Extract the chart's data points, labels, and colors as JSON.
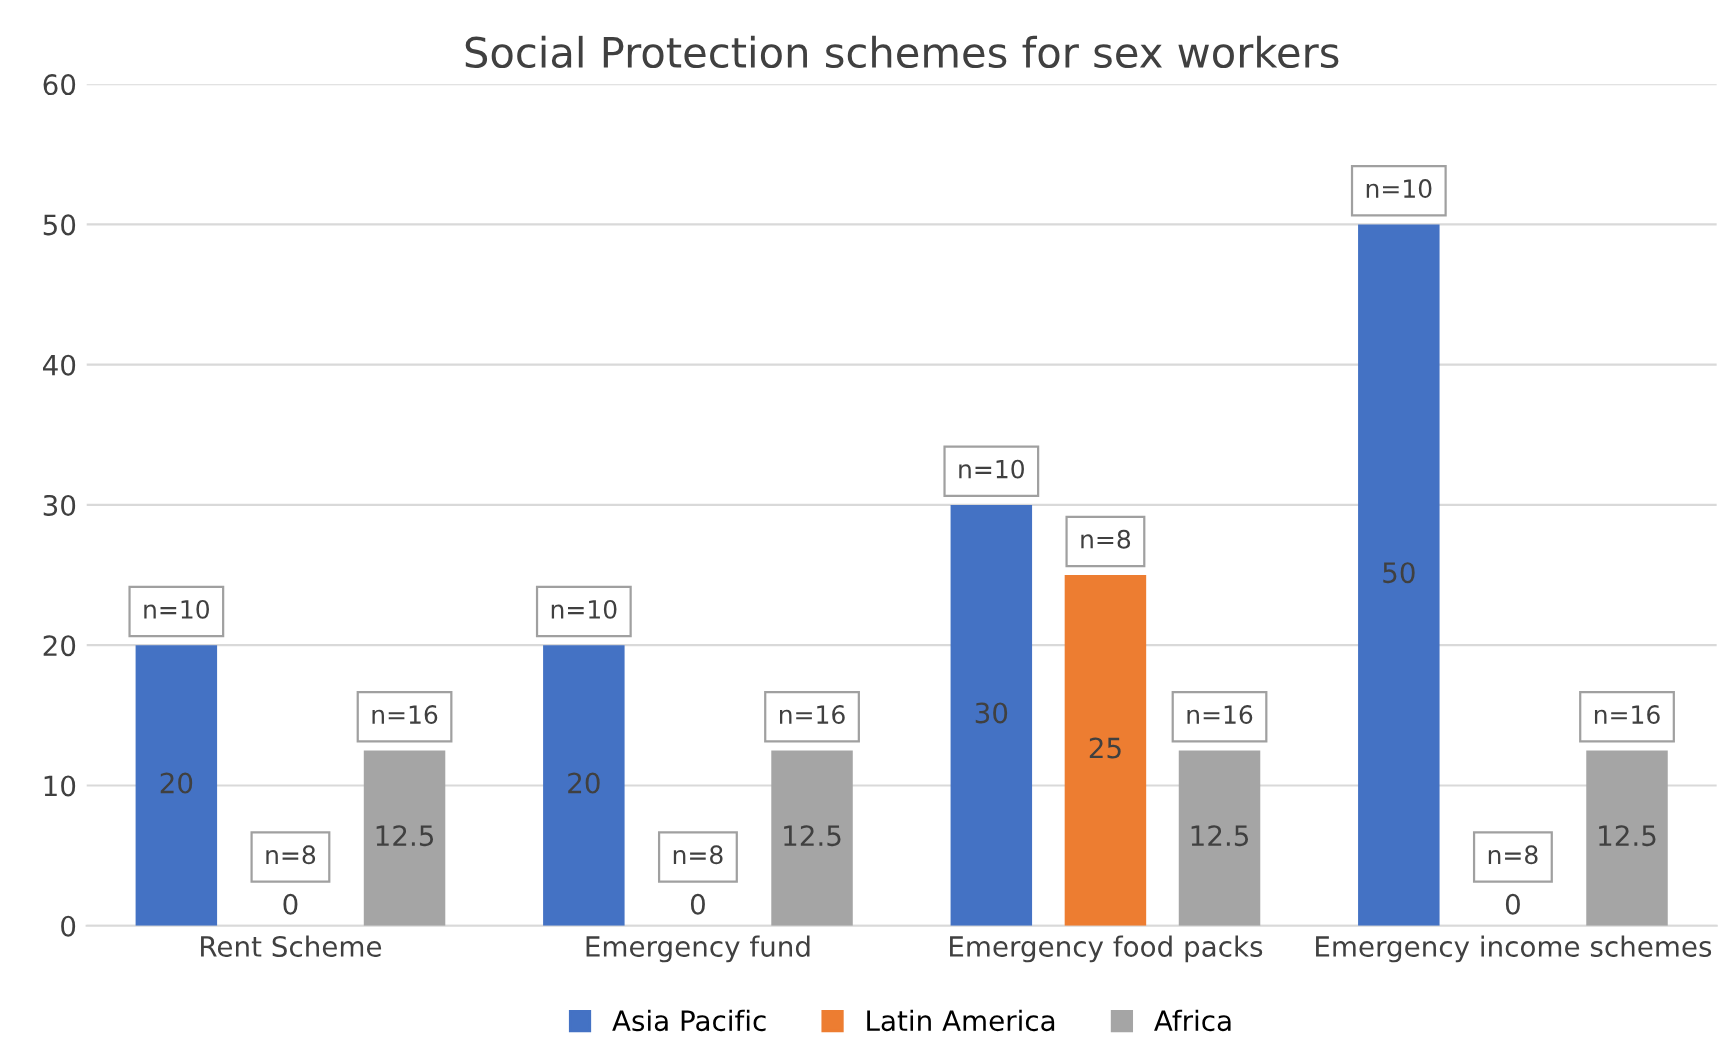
{
  "chart_data": {
    "type": "bar",
    "title": "Social Protection schemes for sex workers",
    "categories": [
      "Rent Scheme",
      "Emergency fund",
      "Emergency food packs",
      "Emergency income schemes"
    ],
    "series": [
      {
        "name": "Asia Pacific",
        "color": "#4472c4",
        "values": [
          20,
          20,
          30,
          50
        ]
      },
      {
        "name": "Latin America",
        "color": "#ed7d31",
        "values": [
          0,
          0,
          25,
          0
        ]
      },
      {
        "name": "Africa",
        "color": "#a5a5a5",
        "values": [
          12.5,
          12.5,
          12.5,
          12.5
        ]
      }
    ],
    "ylim": [
      0,
      60
    ],
    "yticks": [
      0,
      10,
      20,
      30,
      40,
      50,
      60
    ],
    "grid": "y",
    "legend": "bottom",
    "data_labels": true,
    "annotations": [
      "n=10",
      "n=8",
      "n=16",
      "n=10",
      "n=8",
      "n=16",
      "n=10",
      "n=8",
      "n=16",
      "n=10",
      "n=8",
      "n=16"
    ]
  }
}
